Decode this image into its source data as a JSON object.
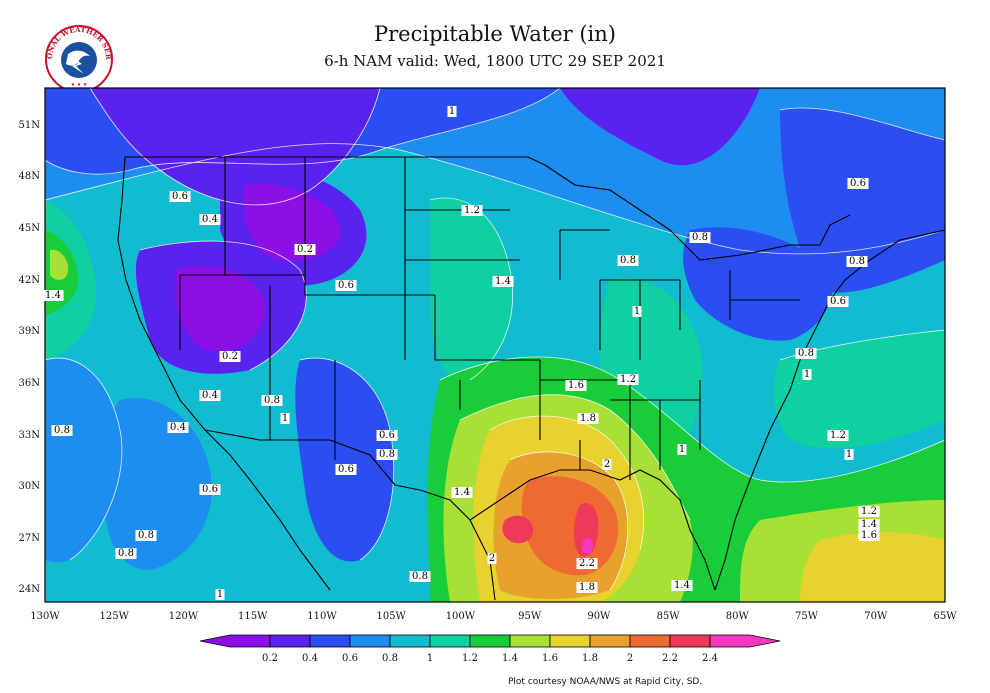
{
  "header": {
    "title": "Precipitable Water (in)",
    "subtitle": "6-h NAM valid: Wed, 1800 UTC 29 SEP 2021"
  },
  "logo": {
    "text": "NATIONAL WEATHER SERVICE",
    "icon": "noaa-nws-logo"
  },
  "map": {
    "lat_labels": [
      "51N",
      "48N",
      "45N",
      "42N",
      "39N",
      "36N",
      "33N",
      "30N",
      "27N",
      "24N"
    ],
    "lon_labels": [
      "130W",
      "125W",
      "120W",
      "115W",
      "110W",
      "105W",
      "100W",
      "95W",
      "90W",
      "85W",
      "80W",
      "75W",
      "70W",
      "65W"
    ],
    "contour_labels": [
      {
        "text": "1"
      },
      {
        "text": "0.6"
      },
      {
        "text": "0.4"
      },
      {
        "text": "0.2"
      },
      {
        "text": "1.2"
      },
      {
        "text": "1.4"
      },
      {
        "text": "0.6"
      },
      {
        "text": "0.8"
      },
      {
        "text": "1"
      },
      {
        "text": "0.6"
      },
      {
        "text": "0.8"
      },
      {
        "text": "0.8"
      },
      {
        "text": "1.4"
      },
      {
        "text": "0.2"
      },
      {
        "text": "0.4"
      },
      {
        "text": "0.8"
      },
      {
        "text": "1"
      },
      {
        "text": "0.8"
      },
      {
        "text": "0.4"
      },
      {
        "text": "0.6"
      },
      {
        "text": "0.8"
      },
      {
        "text": "0.6"
      },
      {
        "text": "0.8"
      },
      {
        "text": "1.6"
      },
      {
        "text": "1.2"
      },
      {
        "text": "1.8"
      },
      {
        "text": "2"
      },
      {
        "text": "1"
      },
      {
        "text": "0.8"
      },
      {
        "text": "1"
      },
      {
        "text": "1.2"
      },
      {
        "text": "1"
      },
      {
        "text": "0.6"
      },
      {
        "text": "1.4"
      },
      {
        "text": "0.6"
      },
      {
        "text": "0.8"
      },
      {
        "text": "1"
      },
      {
        "text": "2.2"
      },
      {
        "text": "1.8"
      },
      {
        "text": "1.4"
      },
      {
        "text": "2"
      },
      {
        "text": "0.8"
      },
      {
        "text": "1.2"
      },
      {
        "text": "1.4"
      },
      {
        "text": "1.6"
      }
    ]
  },
  "colorbar": {
    "labels": [
      "0.2",
      "0.4",
      "0.6",
      "0.8",
      "1",
      "1.2",
      "1.4",
      "1.6",
      "1.8",
      "2",
      "2.2",
      "2.4"
    ],
    "colors": [
      "#8a10e6",
      "#5a22ee",
      "#2b4ef2",
      "#1e8df0",
      "#12bcd0",
      "#0fd0a0",
      "#19cc3a",
      "#a8e036",
      "#e8d22e",
      "#e9a12e",
      "#ee6a32",
      "#ec3a58",
      "#f238c0"
    ]
  },
  "credit": "Plot courtesy NOAA/NWS at Rapid City, SD."
}
